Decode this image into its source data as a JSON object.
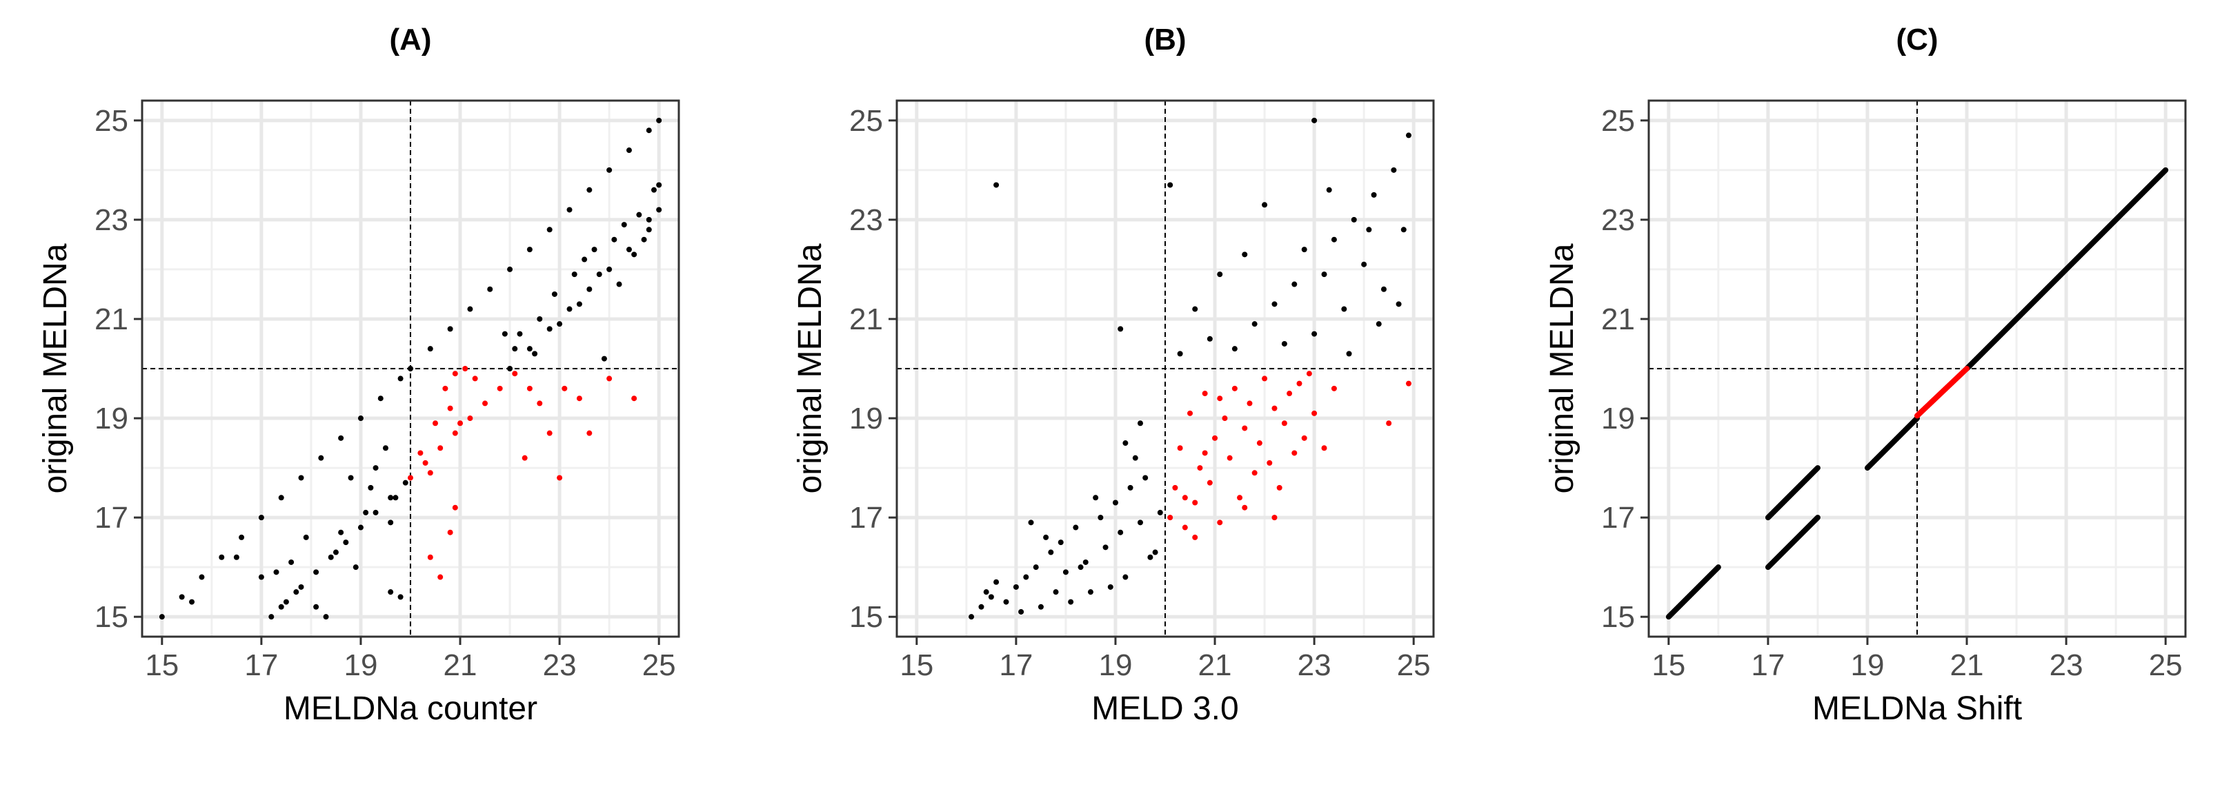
{
  "chart_data": [
    {
      "type": "scatter",
      "panel_label": "(A)",
      "xlabel": "MELDNa counter",
      "ylabel": "original MELDNa",
      "xlim": [
        14.6,
        25.4
      ],
      "ylim": [
        14.6,
        25.4
      ],
      "xticks": [
        15,
        17,
        19,
        21,
        23,
        25
      ],
      "yticks": [
        15,
        17,
        19,
        21,
        23,
        25
      ],
      "reference_lines": {
        "x": 20,
        "y": 20,
        "style": "dashed"
      },
      "grid": true,
      "colors": {
        "default": "#000000",
        "highlight": "#ff0000"
      },
      "series": [
        {
          "color": "#000000",
          "points": [
            [
              15,
              15
            ],
            [
              15.4,
              15.4
            ],
            [
              15.8,
              15.8
            ],
            [
              16.2,
              16.2
            ],
            [
              16.6,
              16.6
            ],
            [
              17,
              17
            ],
            [
              17.4,
              17.4
            ],
            [
              17.8,
              17.8
            ],
            [
              18.2,
              18.2
            ],
            [
              18.6,
              18.6
            ],
            [
              19,
              19
            ],
            [
              19.4,
              19.4
            ],
            [
              19.8,
              19.8
            ],
            [
              20,
              20
            ],
            [
              20.4,
              20.4
            ],
            [
              20.8,
              20.8
            ],
            [
              21.2,
              21.2
            ],
            [
              21.6,
              21.6
            ],
            [
              22,
              22
            ],
            [
              22.4,
              22.4
            ],
            [
              22.8,
              22.8
            ],
            [
              23.2,
              23.2
            ],
            [
              23.6,
              23.6
            ],
            [
              24,
              24
            ],
            [
              24.4,
              24.4
            ],
            [
              24.8,
              24.8
            ],
            [
              25,
              25
            ],
            [
              17.2,
              15
            ],
            [
              17.5,
              15.3
            ],
            [
              17.8,
              15.6
            ],
            [
              18.1,
              15.9
            ],
            [
              18.4,
              16.2
            ],
            [
              18.7,
              16.5
            ],
            [
              19,
              16.8
            ],
            [
              19.3,
              17.1
            ],
            [
              19.6,
              17.4
            ],
            [
              19.9,
              17.7
            ],
            [
              17.3,
              15.9
            ],
            [
              17.6,
              16.1
            ],
            [
              17.4,
              15.2
            ],
            [
              18.1,
              15.2
            ],
            [
              18.3,
              15.0
            ],
            [
              18.6,
              16.7
            ],
            [
              18.9,
              16.0
            ],
            [
              19.2,
              17.6
            ],
            [
              19.5,
              18.4
            ],
            [
              19.6,
              15.5
            ],
            [
              19.8,
              15.4
            ],
            [
              19.6,
              16.9
            ],
            [
              19.3,
              18.0
            ],
            [
              19.1,
              17.1
            ],
            [
              18.8,
              17.8
            ],
            [
              18.5,
              16.3
            ],
            [
              17.9,
              16.6
            ],
            [
              17.7,
              15.5
            ],
            [
              17.0,
              15.8
            ],
            [
              16.5,
              16.2
            ],
            [
              15.6,
              15.3
            ],
            [
              19.7,
              17.4
            ],
            [
              22,
              20
            ],
            [
              22.4,
              20.4
            ],
            [
              22.8,
              20.8
            ],
            [
              23.2,
              21.2
            ],
            [
              23.6,
              21.6
            ],
            [
              24,
              22
            ],
            [
              24.4,
              22.4
            ],
            [
              24.8,
              22.8
            ],
            [
              25,
              23.2
            ],
            [
              22.2,
              20.7
            ],
            [
              22.6,
              21.0
            ],
            [
              22.9,
              21.5
            ],
            [
              23.3,
              21.9
            ],
            [
              23.5,
              22.2
            ],
            [
              23.8,
              21.9
            ],
            [
              24.1,
              22.6
            ],
            [
              24.3,
              22.9
            ],
            [
              24.6,
              23.1
            ],
            [
              24.9,
              23.6
            ],
            [
              25,
              23.7
            ],
            [
              22.5,
              20.3
            ],
            [
              23.0,
              20.9
            ],
            [
              23.4,
              21.3
            ],
            [
              23.7,
              22.4
            ],
            [
              24.2,
              21.7
            ],
            [
              24.5,
              22.3
            ],
            [
              24.8,
              23.0
            ],
            [
              22.1,
              20.4
            ],
            [
              21.9,
              20.7
            ],
            [
              23.9,
              20.2
            ],
            [
              24.7,
              22.6
            ]
          ]
        },
        {
          "color": "#ff0000",
          "points": [
            [
              20,
              17.8
            ],
            [
              20.3,
              18.1
            ],
            [
              20.6,
              18.4
            ],
            [
              20.9,
              18.7
            ],
            [
              21.2,
              19.0
            ],
            [
              21.5,
              19.3
            ],
            [
              21.8,
              19.6
            ],
            [
              22.1,
              19.9
            ],
            [
              20.2,
              18.3
            ],
            [
              20.5,
              18.9
            ],
            [
              20.8,
              19.2
            ],
            [
              21.0,
              18.9
            ],
            [
              20.4,
              17.9
            ],
            [
              20.7,
              19.6
            ],
            [
              21.3,
              19.8
            ],
            [
              20.9,
              19.9
            ],
            [
              21.1,
              20.0
            ],
            [
              20.4,
              16.2
            ],
            [
              20.6,
              15.8
            ],
            [
              20.8,
              16.7
            ],
            [
              20.9,
              17.2
            ],
            [
              22.3,
              18.2
            ],
            [
              22.8,
              18.7
            ],
            [
              23.0,
              17.8
            ],
            [
              23.4,
              19.4
            ],
            [
              23.6,
              18.7
            ],
            [
              24.5,
              19.4
            ],
            [
              24.0,
              19.8
            ],
            [
              22.6,
              19.3
            ],
            [
              22.4,
              19.6
            ],
            [
              23.1,
              19.6
            ]
          ]
        }
      ]
    },
    {
      "type": "scatter",
      "panel_label": "(B)",
      "xlabel": "MELD 3.0",
      "ylabel": "original MELDNa",
      "xlim": [
        14.6,
        25.4
      ],
      "ylim": [
        14.6,
        25.4
      ],
      "xticks": [
        15,
        17,
        19,
        21,
        23,
        25
      ],
      "yticks": [
        15,
        17,
        19,
        21,
        23,
        25
      ],
      "reference_lines": {
        "x": 20,
        "y": 20,
        "style": "dashed"
      },
      "grid": true,
      "colors": {
        "default": "#000000",
        "highlight": "#ff0000"
      },
      "series": [
        {
          "color": "#000000",
          "points": [
            [
              16.1,
              15.0
            ],
            [
              16.3,
              15.2
            ],
            [
              16.5,
              15.4
            ],
            [
              16.8,
              15.3
            ],
            [
              17.0,
              15.6
            ],
            [
              17.2,
              15.8
            ],
            [
              17.4,
              16.0
            ],
            [
              17.5,
              15.2
            ],
            [
              17.7,
              16.3
            ],
            [
              17.9,
              16.5
            ],
            [
              18.0,
              15.9
            ],
            [
              18.2,
              16.8
            ],
            [
              18.4,
              16.1
            ],
            [
              18.5,
              15.5
            ],
            [
              18.7,
              17.0
            ],
            [
              18.8,
              16.4
            ],
            [
              19.0,
              17.3
            ],
            [
              19.1,
              16.7
            ],
            [
              19.3,
              17.6
            ],
            [
              19.5,
              16.9
            ],
            [
              19.6,
              17.8
            ],
            [
              19.8,
              16.3
            ],
            [
              19.9,
              17.1
            ],
            [
              16.6,
              15.7
            ],
            [
              17.1,
              15.1
            ],
            [
              17.6,
              16.6
            ],
            [
              18.1,
              15.3
            ],
            [
              18.6,
              17.4
            ],
            [
              19.2,
              15.8
            ],
            [
              19.7,
              16.2
            ],
            [
              16.4,
              15.5
            ],
            [
              17.3,
              16.9
            ],
            [
              17.8,
              15.5
            ],
            [
              18.3,
              16.0
            ],
            [
              18.9,
              15.6
            ],
            [
              19.4,
              18.2
            ],
            [
              19.5,
              18.9
            ],
            [
              19.2,
              18.5
            ],
            [
              16.6,
              23.7
            ],
            [
              19.1,
              20.8
            ],
            [
              20.1,
              23.7
            ],
            [
              20.3,
              20.3
            ],
            [
              20.6,
              21.2
            ],
            [
              20.9,
              20.6
            ],
            [
              21.1,
              21.9
            ],
            [
              21.4,
              20.4
            ],
            [
              21.6,
              22.3
            ],
            [
              21.8,
              20.9
            ],
            [
              22.0,
              23.3
            ],
            [
              22.2,
              21.3
            ],
            [
              22.4,
              20.5
            ],
            [
              22.6,
              21.7
            ],
            [
              22.8,
              22.4
            ],
            [
              23.0,
              25.0
            ],
            [
              23.0,
              20.7
            ],
            [
              23.2,
              21.9
            ],
            [
              23.4,
              22.6
            ],
            [
              23.6,
              21.2
            ],
            [
              23.8,
              23.0
            ],
            [
              24.0,
              22.1
            ],
            [
              24.2,
              23.5
            ],
            [
              24.4,
              21.6
            ],
            [
              24.6,
              24.0
            ],
            [
              24.8,
              22.8
            ],
            [
              24.9,
              24.7
            ],
            [
              24.3,
              20.9
            ],
            [
              23.7,
              20.3
            ],
            [
              24.7,
              21.3
            ],
            [
              24.1,
              22.8
            ],
            [
              23.3,
              23.6
            ]
          ]
        },
        {
          "color": "#ff0000",
          "points": [
            [
              20.1,
              17.0
            ],
            [
              20.2,
              17.6
            ],
            [
              20.3,
              18.4
            ],
            [
              20.4,
              16.8
            ],
            [
              20.5,
              19.1
            ],
            [
              20.6,
              17.3
            ],
            [
              20.7,
              18.0
            ],
            [
              20.8,
              19.5
            ],
            [
              20.9,
              17.7
            ],
            [
              21.0,
              18.6
            ],
            [
              21.1,
              16.9
            ],
            [
              21.2,
              19.0
            ],
            [
              21.3,
              18.2
            ],
            [
              21.4,
              19.6
            ],
            [
              21.5,
              17.4
            ],
            [
              21.6,
              18.8
            ],
            [
              21.7,
              19.3
            ],
            [
              21.8,
              17.9
            ],
            [
              21.9,
              18.5
            ],
            [
              22.0,
              19.8
            ],
            [
              22.1,
              18.1
            ],
            [
              22.2,
              19.2
            ],
            [
              22.3,
              17.6
            ],
            [
              22.4,
              18.9
            ],
            [
              22.5,
              19.5
            ],
            [
              22.6,
              18.3
            ],
            [
              22.7,
              19.7
            ],
            [
              22.8,
              18.6
            ],
            [
              22.9,
              19.9
            ],
            [
              23.0,
              19.1
            ],
            [
              23.2,
              18.4
            ],
            [
              23.4,
              19.6
            ],
            [
              20.4,
              17.4
            ],
            [
              20.6,
              16.6
            ],
            [
              20.8,
              18.3
            ],
            [
              21.1,
              19.4
            ],
            [
              21.6,
              17.2
            ],
            [
              22.2,
              17.0
            ],
            [
              24.5,
              18.9
            ],
            [
              24.9,
              19.7
            ]
          ]
        }
      ]
    },
    {
      "type": "scatter",
      "panel_label": "(C)",
      "xlabel": "MELDNa Shift",
      "ylabel": "original MELDNa",
      "xlim": [
        14.6,
        25.4
      ],
      "ylim": [
        14.6,
        25.4
      ],
      "xticks": [
        15,
        17,
        19,
        21,
        23,
        25
      ],
      "yticks": [
        15,
        17,
        19,
        21,
        23,
        25
      ],
      "reference_lines": {
        "x": 20,
        "y": 20,
        "style": "dashed"
      },
      "grid": true,
      "colors": {
        "default": "#000000",
        "highlight": "#ff0000"
      },
      "series": [
        {
          "color": "#000000",
          "segments": [
            [
              [
                15,
                15
              ],
              [
                16,
                16
              ]
            ],
            [
              [
                17,
                17
              ],
              [
                18,
                18
              ]
            ],
            [
              [
                17,
                16
              ],
              [
                18,
                17
              ]
            ],
            [
              [
                19,
                18
              ],
              [
                20,
                19
              ]
            ],
            [
              [
                21,
                20
              ],
              [
                25,
                24
              ]
            ]
          ]
        },
        {
          "color": "#ff0000",
          "segments": [
            [
              [
                20,
                19.05
              ],
              [
                21,
                20
              ]
            ]
          ]
        }
      ]
    }
  ]
}
